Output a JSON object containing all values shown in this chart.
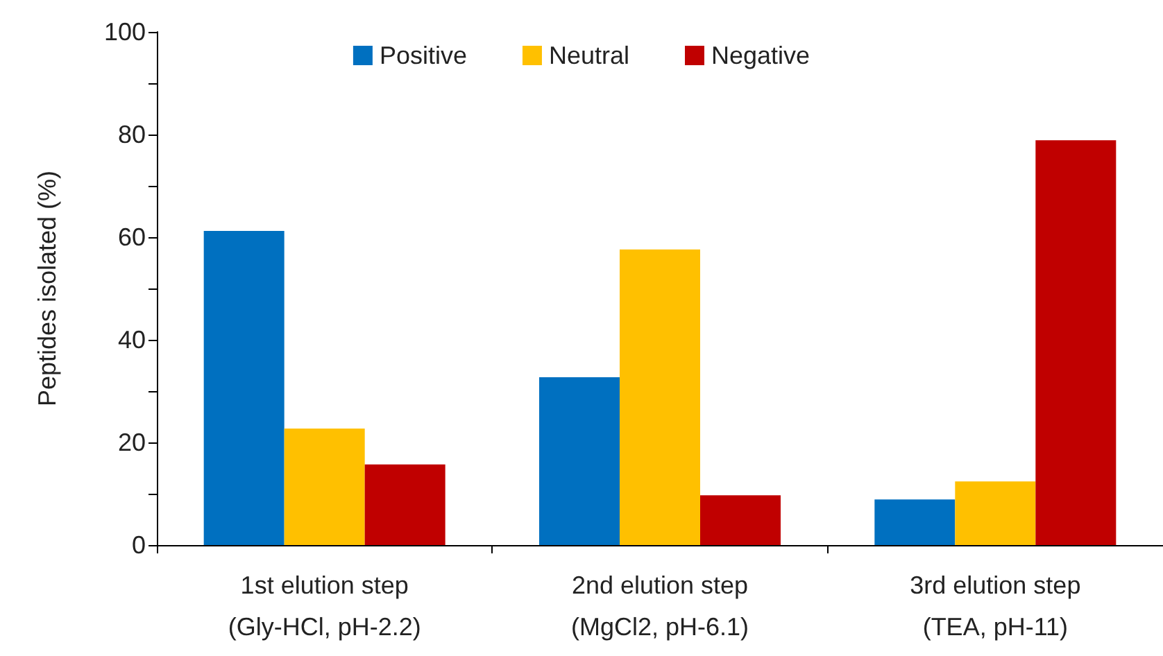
{
  "chart_data": {
    "type": "bar",
    "ylabel": "Peptides isolated (%)",
    "categories": [
      "1st elution step\n(Gly-HCl, pH-2.2)",
      "2nd elution step\n(MgCl2, pH-6.1)",
      "3rd elution step\n(TEA, pH-11)"
    ],
    "series": [
      {
        "name": "Positive",
        "color": "#0070c0",
        "values": [
          61.2,
          32.7,
          8.9
        ]
      },
      {
        "name": "Neutral",
        "color": "#ffc000",
        "values": [
          22.7,
          57.6,
          12.4
        ]
      },
      {
        "name": "Negative",
        "color": "#c00000",
        "values": [
          15.7,
          9.7,
          78.9
        ]
      }
    ],
    "ylim": [
      0,
      100
    ],
    "yticks": [
      0,
      {
        "value": 10,
        "label": null
      },
      20,
      {
        "value": 30,
        "label": null
      },
      40,
      {
        "value": 50,
        "label": null
      },
      60,
      {
        "value": 70,
        "label": null
      },
      80,
      {
        "value": 90,
        "label": null
      },
      100
    ],
    "grid": false,
    "legend": "top"
  }
}
